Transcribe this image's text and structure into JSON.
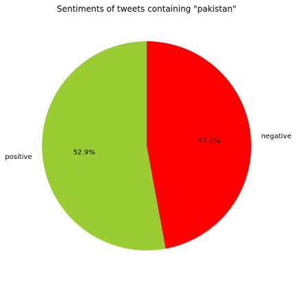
{
  "chart_data": {
    "type": "pie",
    "title": "Sentiments of tweets containing \"pakistan\"",
    "labels": [
      "negative",
      "positive"
    ],
    "values": [
      47.1,
      52.9
    ],
    "value_labels": [
      "47.1%",
      "52.9%"
    ],
    "colors": [
      "#ff0000",
      "#9acd32"
    ],
    "start_angle_deg": 90,
    "direction": "clockwise"
  }
}
